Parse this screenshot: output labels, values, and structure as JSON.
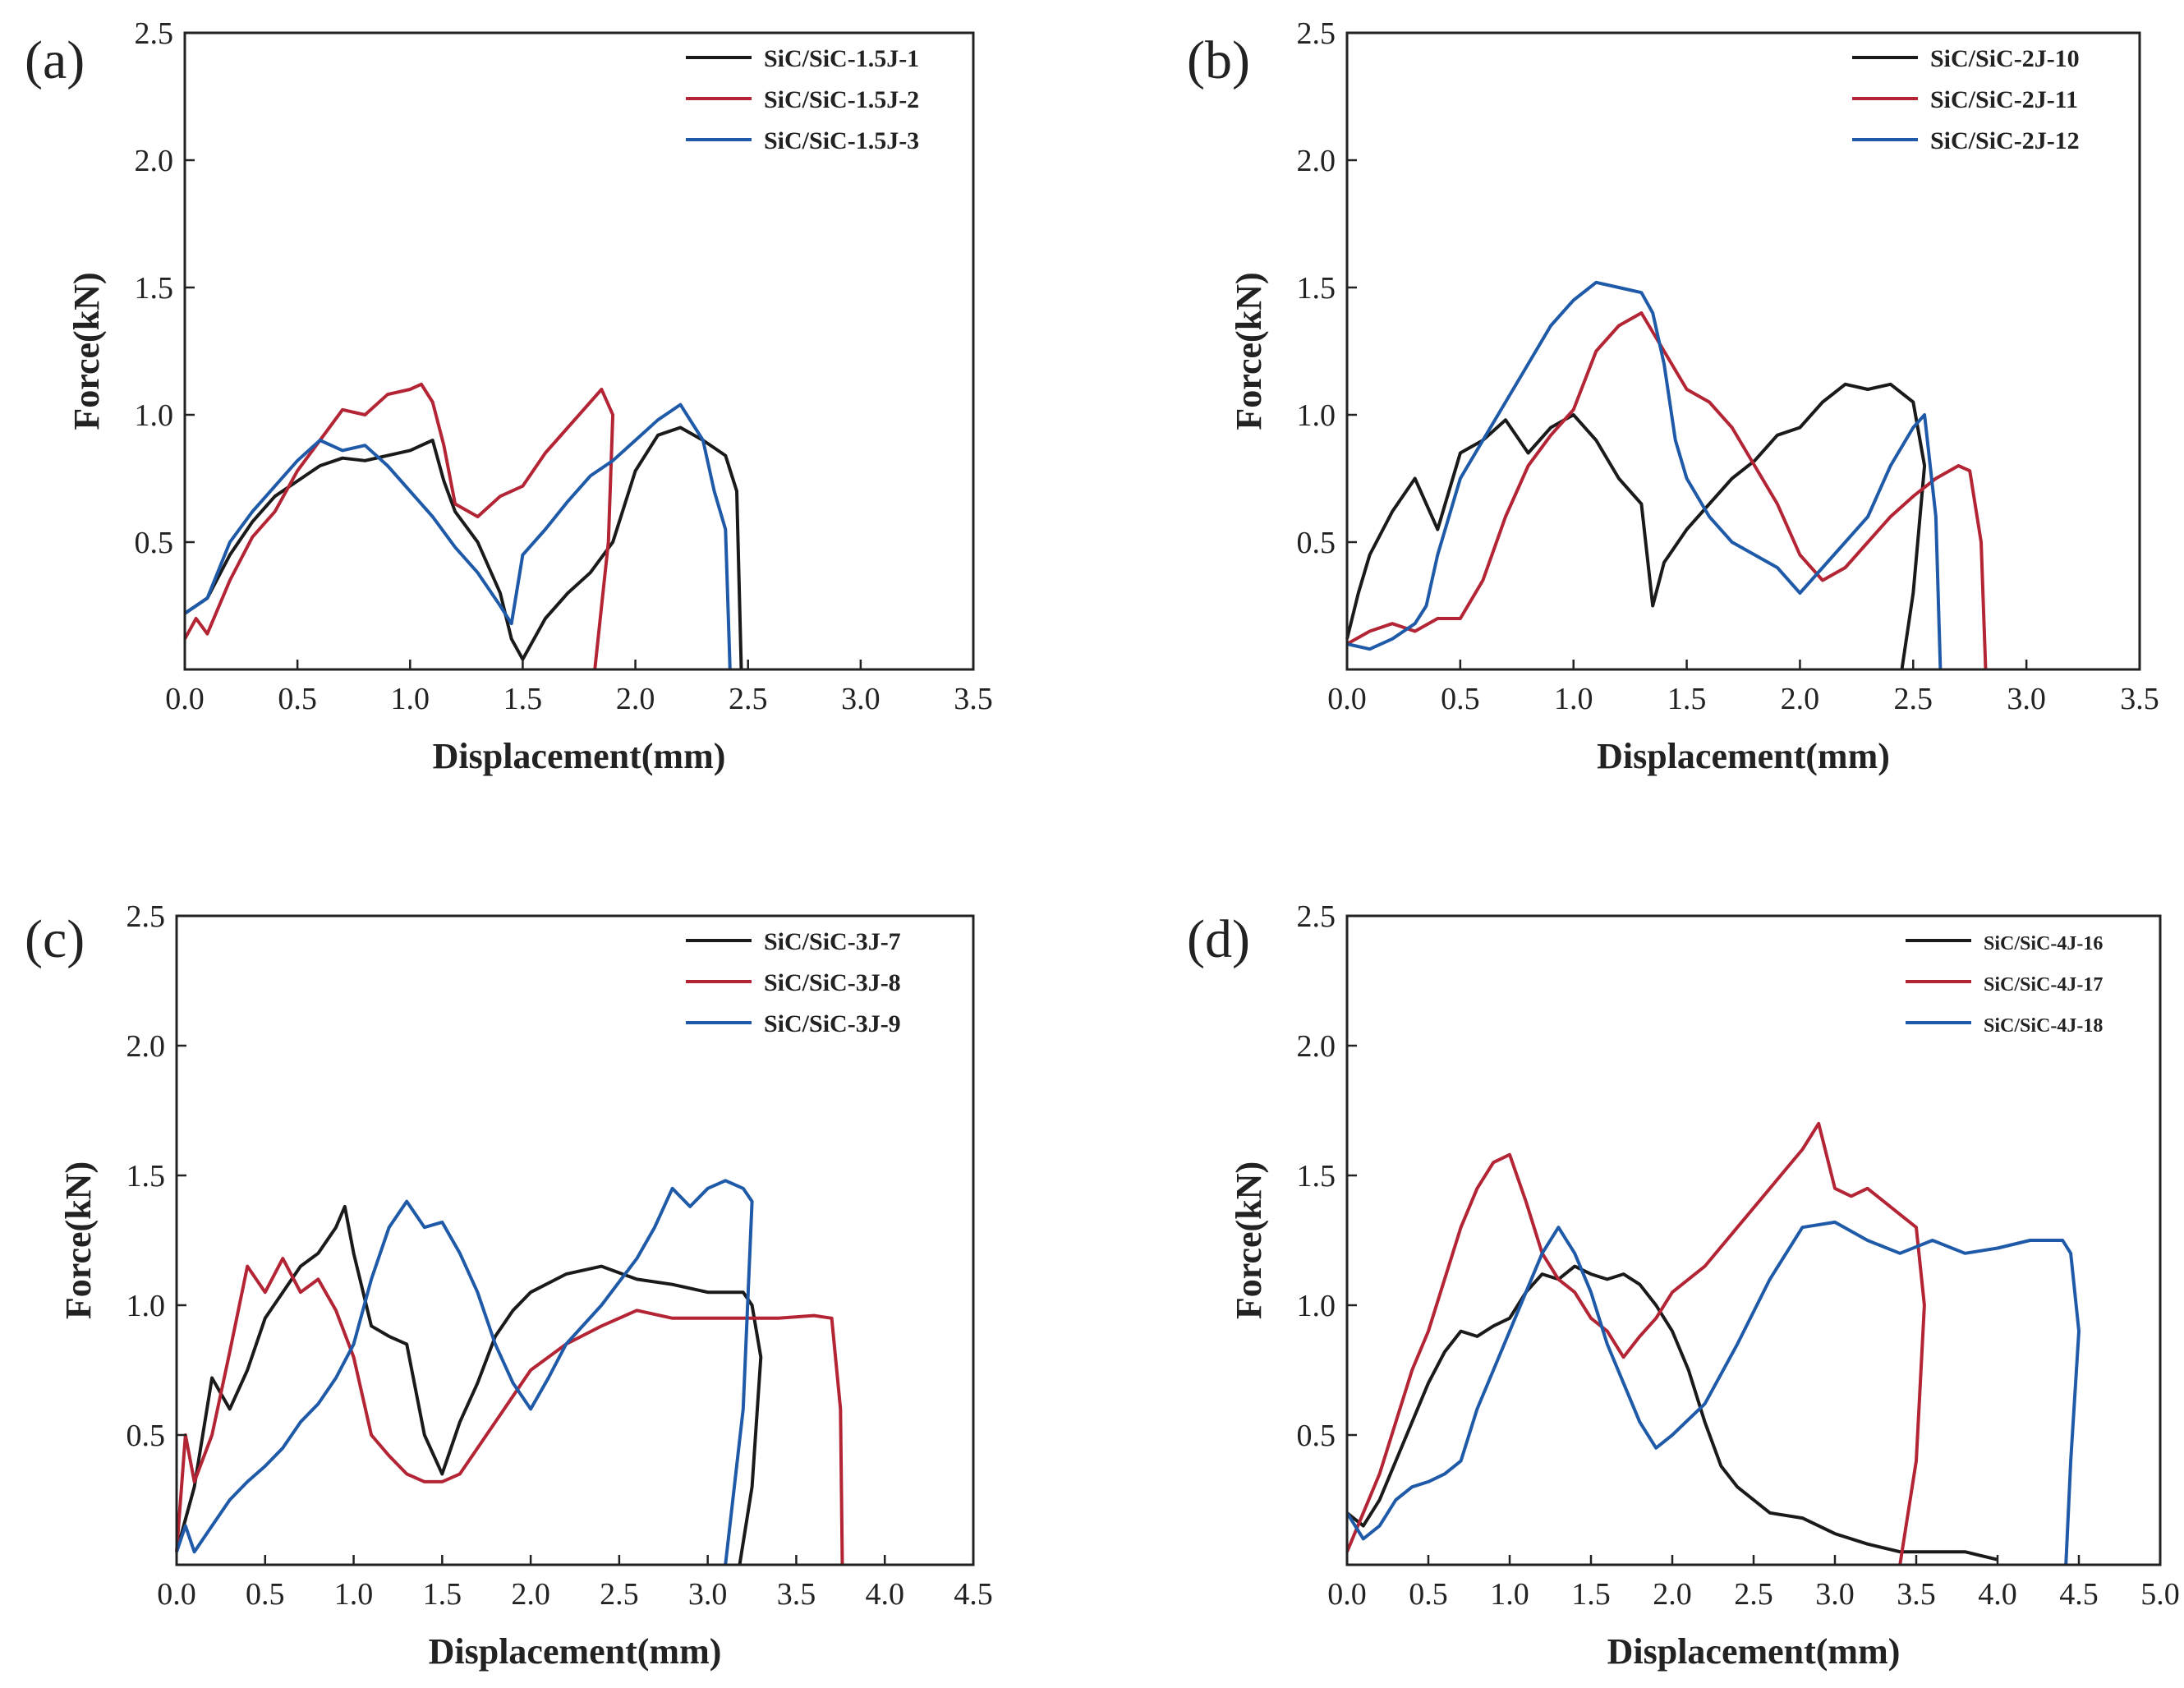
{
  "figure": {
    "colors": {
      "black": "#1a1a1a",
      "red": "#b32434",
      "blue": "#1f5aa8",
      "axis": "#222222"
    }
  },
  "chart_data": [
    {
      "panel": "(a)",
      "type": "line",
      "xlabel": "Displacement(mm)",
      "ylabel": "Force(kN)",
      "xlim": [
        0.0,
        3.5
      ],
      "ylim": [
        0.0,
        2.5
      ],
      "xticks": [
        "0.0",
        "0.5",
        "1.0",
        "1.5",
        "2.0",
        "2.5",
        "3.0",
        "3.5"
      ],
      "yticks": [
        "0.5",
        "1.0",
        "1.5",
        "2.0",
        "2.5"
      ],
      "legend": "top-right",
      "series": [
        {
          "name": "SiC/SiC-1.5J-1",
          "color": "black",
          "x": [
            0.0,
            0.1,
            0.2,
            0.3,
            0.4,
            0.5,
            0.6,
            0.7,
            0.8,
            0.9,
            1.0,
            1.1,
            1.15,
            1.2,
            1.3,
            1.4,
            1.45,
            1.5,
            1.6,
            1.7,
            1.8,
            1.9,
            2.0,
            2.1,
            2.2,
            2.3,
            2.4,
            2.45,
            2.47
          ],
          "y": [
            0.22,
            0.28,
            0.45,
            0.58,
            0.68,
            0.74,
            0.8,
            0.83,
            0.82,
            0.84,
            0.86,
            0.9,
            0.74,
            0.62,
            0.5,
            0.3,
            0.12,
            0.04,
            0.2,
            0.3,
            0.38,
            0.5,
            0.78,
            0.92,
            0.95,
            0.9,
            0.84,
            0.7,
            0.0
          ]
        },
        {
          "name": "SiC/SiC-1.5J-2",
          "color": "red",
          "x": [
            0.0,
            0.05,
            0.1,
            0.2,
            0.3,
            0.4,
            0.5,
            0.6,
            0.7,
            0.8,
            0.9,
            1.0,
            1.05,
            1.1,
            1.15,
            1.2,
            1.3,
            1.4,
            1.5,
            1.6,
            1.7,
            1.8,
            1.85,
            1.9,
            1.88,
            1.82
          ],
          "y": [
            0.12,
            0.2,
            0.14,
            0.35,
            0.52,
            0.62,
            0.78,
            0.9,
            1.02,
            1.0,
            1.08,
            1.1,
            1.12,
            1.05,
            0.88,
            0.65,
            0.6,
            0.68,
            0.72,
            0.85,
            0.95,
            1.05,
            1.1,
            1.0,
            0.5,
            0.0
          ]
        },
        {
          "name": "SiC/SiC-1.5J-3",
          "color": "blue",
          "x": [
            0.0,
            0.1,
            0.2,
            0.3,
            0.4,
            0.5,
            0.6,
            0.7,
            0.8,
            0.9,
            1.0,
            1.1,
            1.2,
            1.3,
            1.4,
            1.45,
            1.5,
            1.6,
            1.7,
            1.8,
            1.9,
            2.0,
            2.1,
            2.2,
            2.3,
            2.35,
            2.4,
            2.42
          ],
          "y": [
            0.22,
            0.28,
            0.5,
            0.62,
            0.72,
            0.82,
            0.9,
            0.86,
            0.88,
            0.8,
            0.7,
            0.6,
            0.48,
            0.38,
            0.25,
            0.18,
            0.45,
            0.55,
            0.66,
            0.76,
            0.82,
            0.9,
            0.98,
            1.04,
            0.9,
            0.7,
            0.55,
            0.0
          ]
        }
      ]
    },
    {
      "panel": "(b)",
      "type": "line",
      "xlabel": "Displacement(mm)",
      "ylabel": "Force(kN)",
      "xlim": [
        0.0,
        3.5
      ],
      "ylim": [
        0.0,
        2.5
      ],
      "xticks": [
        "0.0",
        "0.5",
        "1.0",
        "1.5",
        "2.0",
        "2.5",
        "3.0",
        "3.5"
      ],
      "yticks": [
        "0.5",
        "1.0",
        "1.5",
        "2.0",
        "2.5"
      ],
      "legend": "top-right",
      "series": [
        {
          "name": "SiC/SiC-2J-10",
          "color": "black",
          "x": [
            0.0,
            0.05,
            0.1,
            0.2,
            0.3,
            0.4,
            0.5,
            0.6,
            0.7,
            0.8,
            0.9,
            1.0,
            1.1,
            1.2,
            1.3,
            1.35,
            1.4,
            1.5,
            1.6,
            1.7,
            1.8,
            1.9,
            2.0,
            2.1,
            2.2,
            2.3,
            2.4,
            2.5,
            2.55,
            2.5,
            2.45
          ],
          "y": [
            0.12,
            0.3,
            0.45,
            0.62,
            0.75,
            0.55,
            0.85,
            0.9,
            0.98,
            0.85,
            0.95,
            1.0,
            0.9,
            0.75,
            0.65,
            0.25,
            0.42,
            0.55,
            0.65,
            0.75,
            0.82,
            0.92,
            0.95,
            1.05,
            1.12,
            1.1,
            1.12,
            1.05,
            0.8,
            0.3,
            0.0
          ]
        },
        {
          "name": "SiC/SiC-2J-11",
          "color": "red",
          "x": [
            0.0,
            0.1,
            0.2,
            0.3,
            0.4,
            0.5,
            0.6,
            0.7,
            0.8,
            0.9,
            1.0,
            1.1,
            1.2,
            1.3,
            1.4,
            1.5,
            1.6,
            1.7,
            1.8,
            1.9,
            2.0,
            2.1,
            2.2,
            2.3,
            2.4,
            2.5,
            2.6,
            2.7,
            2.75,
            2.8,
            2.82
          ],
          "y": [
            0.1,
            0.15,
            0.18,
            0.15,
            0.2,
            0.2,
            0.35,
            0.6,
            0.8,
            0.92,
            1.02,
            1.25,
            1.35,
            1.4,
            1.25,
            1.1,
            1.05,
            0.95,
            0.8,
            0.65,
            0.45,
            0.35,
            0.4,
            0.5,
            0.6,
            0.68,
            0.75,
            0.8,
            0.78,
            0.5,
            0.0
          ]
        },
        {
          "name": "SiC/SiC-2J-12",
          "color": "blue",
          "x": [
            0.0,
            0.1,
            0.2,
            0.3,
            0.35,
            0.4,
            0.5,
            0.6,
            0.7,
            0.8,
            0.9,
            1.0,
            1.1,
            1.2,
            1.3,
            1.35,
            1.4,
            1.45,
            1.5,
            1.6,
            1.7,
            1.8,
            1.9,
            2.0,
            2.1,
            2.2,
            2.3,
            2.4,
            2.5,
            2.55,
            2.6,
            2.62
          ],
          "y": [
            0.1,
            0.08,
            0.12,
            0.18,
            0.25,
            0.45,
            0.75,
            0.9,
            1.05,
            1.2,
            1.35,
            1.45,
            1.52,
            1.5,
            1.48,
            1.4,
            1.2,
            0.9,
            0.75,
            0.6,
            0.5,
            0.45,
            0.4,
            0.3,
            0.4,
            0.5,
            0.6,
            0.8,
            0.95,
            1.0,
            0.6,
            0.0
          ]
        }
      ]
    },
    {
      "panel": "(c)",
      "type": "line",
      "xlabel": "Displacement(mm)",
      "ylabel": "Force(kN)",
      "xlim": [
        0.0,
        4.5
      ],
      "ylim": [
        0.0,
        2.5
      ],
      "xticks": [
        "0.0",
        "0.5",
        "1.0",
        "1.5",
        "2.0",
        "2.5",
        "3.0",
        "3.5",
        "4.0",
        "4.5"
      ],
      "yticks": [
        "0.5",
        "1.0",
        "1.5",
        "2.0",
        "2.5"
      ],
      "legend": "top-right",
      "series": [
        {
          "name": "SiC/SiC-3J-7",
          "color": "black",
          "x": [
            0.0,
            0.1,
            0.2,
            0.3,
            0.4,
            0.5,
            0.6,
            0.7,
            0.8,
            0.9,
            0.95,
            1.0,
            1.1,
            1.2,
            1.3,
            1.4,
            1.5,
            1.6,
            1.7,
            1.8,
            1.9,
            2.0,
            2.2,
            2.4,
            2.6,
            2.8,
            3.0,
            3.2,
            3.25,
            3.3,
            3.25,
            3.18
          ],
          "y": [
            0.05,
            0.3,
            0.72,
            0.6,
            0.75,
            0.95,
            1.05,
            1.15,
            1.2,
            1.3,
            1.38,
            1.2,
            0.92,
            0.88,
            0.85,
            0.5,
            0.35,
            0.55,
            0.7,
            0.88,
            0.98,
            1.05,
            1.12,
            1.15,
            1.1,
            1.08,
            1.05,
            1.05,
            1.0,
            0.8,
            0.3,
            0.0
          ]
        },
        {
          "name": "SiC/SiC-3J-8",
          "color": "red",
          "x": [
            0.0,
            0.05,
            0.1,
            0.2,
            0.3,
            0.4,
            0.5,
            0.6,
            0.7,
            0.8,
            0.9,
            1.0,
            1.1,
            1.2,
            1.3,
            1.4,
            1.5,
            1.6,
            1.8,
            2.0,
            2.2,
            2.4,
            2.6,
            2.8,
            3.0,
            3.2,
            3.4,
            3.6,
            3.7,
            3.75,
            3.76
          ],
          "y": [
            0.05,
            0.5,
            0.32,
            0.5,
            0.82,
            1.15,
            1.05,
            1.18,
            1.05,
            1.1,
            0.98,
            0.8,
            0.5,
            0.42,
            0.35,
            0.32,
            0.32,
            0.35,
            0.55,
            0.75,
            0.85,
            0.92,
            0.98,
            0.95,
            0.95,
            0.95,
            0.95,
            0.96,
            0.95,
            0.6,
            0.0
          ]
        },
        {
          "name": "SiC/SiC-3J-9",
          "color": "blue",
          "x": [
            0.0,
            0.05,
            0.1,
            0.2,
            0.3,
            0.4,
            0.5,
            0.6,
            0.7,
            0.8,
            0.9,
            1.0,
            1.1,
            1.2,
            1.3,
            1.4,
            1.5,
            1.6,
            1.7,
            1.8,
            1.9,
            2.0,
            2.1,
            2.2,
            2.4,
            2.6,
            2.7,
            2.8,
            2.9,
            3.0,
            3.1,
            3.2,
            3.25,
            3.2,
            3.1
          ],
          "y": [
            0.05,
            0.15,
            0.05,
            0.15,
            0.25,
            0.32,
            0.38,
            0.45,
            0.55,
            0.62,
            0.72,
            0.85,
            1.1,
            1.3,
            1.4,
            1.3,
            1.32,
            1.2,
            1.05,
            0.85,
            0.7,
            0.6,
            0.72,
            0.85,
            1.0,
            1.18,
            1.3,
            1.45,
            1.38,
            1.45,
            1.48,
            1.45,
            1.4,
            0.6,
            0.0
          ]
        }
      ]
    },
    {
      "panel": "(d)",
      "type": "line",
      "xlabel": "Displacement(mm)",
      "ylabel": "Force(kN)",
      "xlim": [
        0.0,
        5.0
      ],
      "ylim": [
        0.0,
        2.5
      ],
      "xticks": [
        "0.0",
        "0.5",
        "1.0",
        "1.5",
        "2.0",
        "2.5",
        "3.0",
        "3.5",
        "4.0",
        "4.5",
        "5.0"
      ],
      "yticks": [
        "0.5",
        "1.0",
        "1.5",
        "2.0",
        "2.5"
      ],
      "legend": "top-right",
      "series": [
        {
          "name": "SiC/SiC-4J-16",
          "color": "black",
          "x": [
            0.0,
            0.1,
            0.2,
            0.3,
            0.4,
            0.5,
            0.6,
            0.7,
            0.8,
            0.9,
            1.0,
            1.1,
            1.2,
            1.3,
            1.4,
            1.5,
            1.6,
            1.7,
            1.8,
            1.9,
            2.0,
            2.1,
            2.2,
            2.3,
            2.4,
            2.6,
            2.8,
            3.0,
            3.2,
            3.4,
            3.6,
            3.8,
            4.0
          ],
          "y": [
            0.2,
            0.15,
            0.25,
            0.4,
            0.55,
            0.7,
            0.82,
            0.9,
            0.88,
            0.92,
            0.95,
            1.05,
            1.12,
            1.1,
            1.15,
            1.12,
            1.1,
            1.12,
            1.08,
            1.0,
            0.9,
            0.75,
            0.55,
            0.38,
            0.3,
            0.2,
            0.18,
            0.12,
            0.08,
            0.05,
            0.05,
            0.05,
            0.02
          ]
        },
        {
          "name": "SiC/SiC-4J-17",
          "color": "red",
          "x": [
            0.0,
            0.1,
            0.2,
            0.3,
            0.4,
            0.5,
            0.6,
            0.7,
            0.8,
            0.9,
            1.0,
            1.1,
            1.2,
            1.3,
            1.4,
            1.5,
            1.6,
            1.7,
            1.8,
            1.9,
            2.0,
            2.2,
            2.4,
            2.6,
            2.8,
            2.9,
            3.0,
            3.1,
            3.2,
            3.3,
            3.4,
            3.5,
            3.55,
            3.5,
            3.4
          ],
          "y": [
            0.05,
            0.2,
            0.35,
            0.55,
            0.75,
            0.9,
            1.1,
            1.3,
            1.45,
            1.55,
            1.58,
            1.4,
            1.2,
            1.1,
            1.05,
            0.95,
            0.9,
            0.8,
            0.88,
            0.95,
            1.05,
            1.15,
            1.3,
            1.45,
            1.6,
            1.7,
            1.45,
            1.42,
            1.45,
            1.4,
            1.35,
            1.3,
            1.0,
            0.4,
            0.0
          ]
        },
        {
          "name": "SiC/SiC-4J-18",
          "color": "blue",
          "x": [
            0.0,
            0.1,
            0.2,
            0.3,
            0.4,
            0.5,
            0.6,
            0.7,
            0.8,
            0.9,
            1.0,
            1.1,
            1.2,
            1.3,
            1.4,
            1.5,
            1.6,
            1.7,
            1.8,
            1.9,
            2.0,
            2.2,
            2.4,
            2.6,
            2.8,
            3.0,
            3.2,
            3.4,
            3.6,
            3.8,
            4.0,
            4.2,
            4.4,
            4.45,
            4.5,
            4.45,
            4.42
          ],
          "y": [
            0.2,
            0.1,
            0.15,
            0.25,
            0.3,
            0.32,
            0.35,
            0.4,
            0.6,
            0.75,
            0.9,
            1.05,
            1.2,
            1.3,
            1.2,
            1.05,
            0.85,
            0.7,
            0.55,
            0.45,
            0.5,
            0.62,
            0.85,
            1.1,
            1.3,
            1.32,
            1.25,
            1.2,
            1.25,
            1.2,
            1.22,
            1.25,
            1.25,
            1.2,
            0.9,
            0.4,
            0.0
          ]
        }
      ]
    }
  ]
}
